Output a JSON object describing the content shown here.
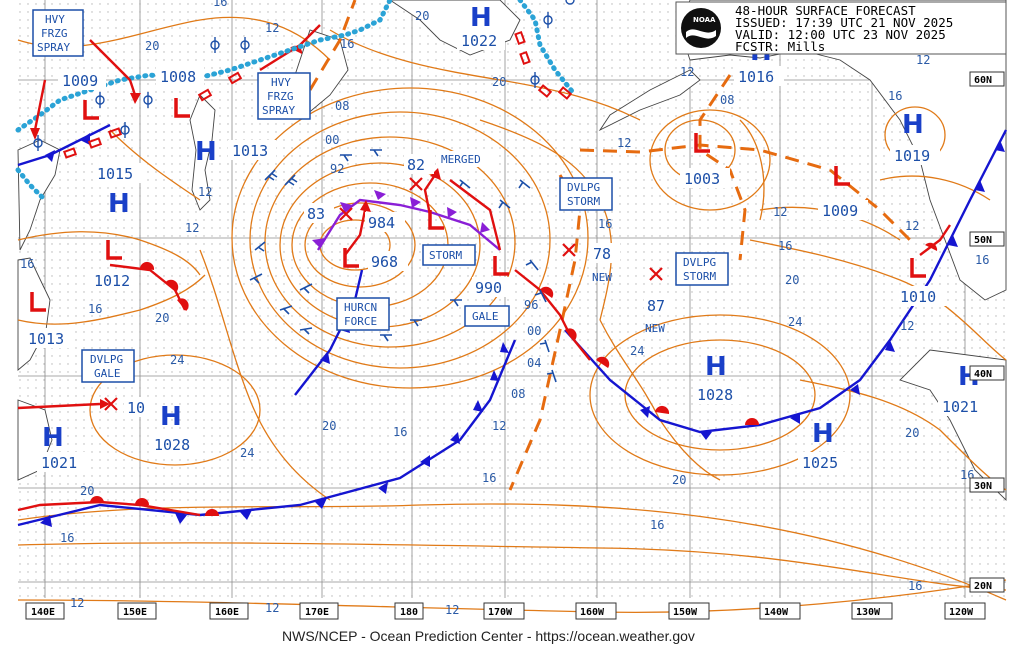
{
  "header": {
    "line1": "48-HOUR SURFACE FORECAST",
    "line2": "ISSUED: 17:39 UTC 21 NOV 2025",
    "line3": "VALID:  12:00 UTC 23 NOV 2025",
    "line4": "FCSTR:  Mills",
    "logo_text": "NOAA"
  },
  "footer": "NWS/NCEP - Ocean Prediction Center - https://ocean.weather.gov",
  "lon_labels": [
    "140E",
    "150E",
    "160E",
    "170E",
    "180",
    "170W",
    "160W",
    "150W",
    "140W",
    "130W",
    "120W"
  ],
  "lat_labels": [
    "60N",
    "50N",
    "40N",
    "30N",
    "20N"
  ],
  "highs": [
    "H",
    "H",
    "H",
    "H",
    "H",
    "H",
    "H",
    "H",
    "H",
    "H",
    "H"
  ],
  "pressures": {
    "p1009w": "1009",
    "p1008": "1008",
    "p1015": "1015",
    "p1013n": "1013",
    "p1022": "1022",
    "p1012": "1012",
    "p1013sw": "1013",
    "p983": "83",
    "p984": "984",
    "p968": "968",
    "p82": "82",
    "p990": "990",
    "p96": "96",
    "p78": "78",
    "p87": "87",
    "p10": "10",
    "p1028w": "1028",
    "p1021w": "1021",
    "p1003": "1003",
    "p1016": "1016",
    "p1019": "1019",
    "p1009e": "1009",
    "p1010": "1010",
    "p1028c": "1028",
    "p1025": "1025",
    "p1021e": "1021"
  },
  "warnings": {
    "hfs1": [
      "HVY",
      "FRZG",
      "SPRAY"
    ],
    "hfs2": [
      "HVY",
      "FRZG",
      "SPRAY"
    ],
    "storm": "STORM",
    "gale": "GALE",
    "hurcn": [
      "HURCN",
      "FORCE"
    ],
    "dvlpg_gale": [
      "DVLPG",
      "GALE"
    ],
    "dvlpg_storm1": [
      "DVLPG",
      "STORM"
    ],
    "dvlpg_storm2": [
      "DVLPG",
      "STORM"
    ],
    "merged": "MERGED",
    "new1": "NEW",
    "new2": "NEW"
  },
  "isobar_labels": [
    "20",
    "16",
    "12",
    "20",
    "16",
    "20",
    "08",
    "00",
    "92",
    "12",
    "12",
    "16",
    "16",
    "20",
    "24",
    "20",
    "16",
    "24",
    "20",
    "16",
    "12",
    "08",
    "04",
    "00",
    "16",
    "12",
    "12",
    "08",
    "12",
    "16",
    "20",
    "24",
    "24",
    "20",
    "16",
    "20",
    "12",
    "16",
    "16",
    "12",
    "12",
    "12",
    "12",
    "16",
    "16",
    "12",
    "16"
  ],
  "colors": {
    "isobar": "#e07a18",
    "front_cold": "#1515d0",
    "front_warm": "#e01010",
    "occluded": "#8a1fd6",
    "text": "#1c4fa8",
    "grid": "#8a8a8a"
  }
}
